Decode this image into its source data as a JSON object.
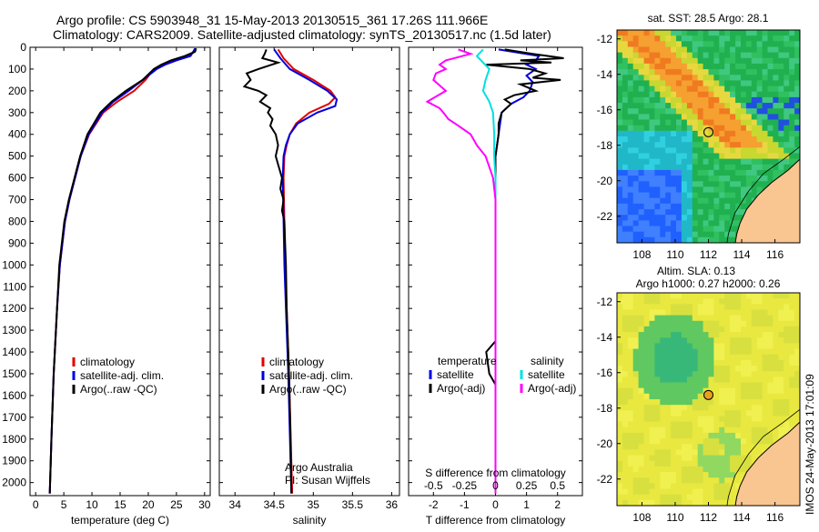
{
  "header": {
    "line1": "Argo profile: CS 5903948_31 15-May-2013 20130515_361 17.26S 111.966E",
    "line2": "Climatology: CARS2009. Satellite-adjusted climatology: synTS_20130517.nc (1.5d later)"
  },
  "side_text": "IMOS 24-May-2013 17:01:09",
  "colors": {
    "climatology": "#e00000",
    "satellite": "#0000e0",
    "argo": "#000000",
    "salinity_sat": "#00e0e0",
    "salinity_argo": "#ff00ff"
  },
  "chart_data": [
    {
      "id": "temperature",
      "type": "line",
      "xlabel": "temperature (deg C)",
      "xlim": [
        -1,
        31
      ],
      "xticks": [
        0,
        5,
        10,
        15,
        20,
        25,
        30
      ],
      "ylim": [
        2060,
        0
      ],
      "yticks": [
        0,
        100,
        200,
        300,
        400,
        500,
        600,
        700,
        800,
        900,
        1000,
        1100,
        1200,
        1300,
        1400,
        1500,
        1600,
        1700,
        1800,
        1900,
        2000
      ],
      "legend": {
        "placement": "lower-center",
        "entries": [
          "climatology",
          "satellite-adj. clim.",
          "Argo(..raw -QC)"
        ]
      },
      "series": [
        {
          "name": "climatology",
          "color": "#e00000",
          "depth": [
            5,
            20,
            40,
            60,
            80,
            100,
            150,
            200,
            250,
            300,
            400,
            500,
            600,
            700,
            800,
            1000,
            1200,
            1500,
            1800,
            2050
          ],
          "values": [
            28.4,
            28.3,
            27.0,
            24.5,
            22.5,
            21.0,
            19.5,
            17.5,
            14.5,
            12.0,
            9.5,
            8.0,
            7.0,
            6.0,
            5.2,
            4.3,
            3.8,
            3.2,
            2.8,
            2.5
          ]
        },
        {
          "name": "satellite-adj. clim.",
          "color": "#0000e0",
          "depth": [
            5,
            20,
            40,
            60,
            80,
            100,
            150,
            200,
            250,
            300,
            400,
            500,
            600,
            700,
            800,
            1000,
            1200,
            1500,
            1800,
            2050
          ],
          "values": [
            28.3,
            28.0,
            27.5,
            25.0,
            23.0,
            21.5,
            19.0,
            16.5,
            13.8,
            11.8,
            9.4,
            8.0,
            7.0,
            6.0,
            5.2,
            4.3,
            3.8,
            3.2,
            2.8,
            2.5
          ]
        },
        {
          "name": "Argo(..raw -QC)",
          "color": "#000000",
          "depth": [
            5,
            20,
            40,
            60,
            80,
            100,
            150,
            200,
            250,
            300,
            400,
            500,
            600,
            700,
            800,
            1000,
            1200,
            1500,
            1800,
            2050
          ],
          "values": [
            28.5,
            28.3,
            26.5,
            24.0,
            22.3,
            21.0,
            19.0,
            16.0,
            13.5,
            11.5,
            9.2,
            7.9,
            6.9,
            5.9,
            5.1,
            4.2,
            3.8,
            3.2,
            2.8,
            2.5
          ]
        }
      ]
    },
    {
      "id": "salinity",
      "type": "line",
      "xlabel": "salinity",
      "xlim": [
        33.8,
        36.1
      ],
      "xticks": [
        34,
        34.5,
        35,
        35.5,
        36
      ],
      "ylim": [
        2060,
        0
      ],
      "legend": {
        "placement": "lower-center",
        "entries": [
          "climatology",
          "satellite-adj. clim.",
          "Argo(..raw -QC)"
        ]
      },
      "annotation": [
        "Argo Australia",
        "PI: Susan Wijffels"
      ],
      "series": [
        {
          "name": "climatology",
          "color": "#e00000",
          "depth": [
            10,
            50,
            100,
            150,
            200,
            230,
            260,
            300,
            350,
            400,
            450,
            500,
            600,
            800,
            1000,
            1500,
            2050
          ],
          "values": [
            34.55,
            34.62,
            34.75,
            35.0,
            35.22,
            35.28,
            35.2,
            34.95,
            34.78,
            34.7,
            34.66,
            34.63,
            34.62,
            34.63,
            34.64,
            34.69,
            34.73
          ]
        },
        {
          "name": "satellite-adj. clim.",
          "color": "#0000e0",
          "depth": [
            10,
            50,
            100,
            150,
            200,
            240,
            270,
            300,
            350,
            400,
            450,
            500,
            600,
            800,
            1000,
            1500,
            2050
          ],
          "values": [
            34.5,
            34.58,
            34.7,
            34.95,
            35.18,
            35.3,
            35.28,
            35.05,
            34.8,
            34.7,
            34.65,
            34.62,
            34.61,
            34.62,
            34.63,
            34.68,
            34.72
          ]
        },
        {
          "name": "Argo(..raw -QC)",
          "color": "#000000",
          "depth": [
            10,
            30,
            50,
            70,
            100,
            120,
            150,
            180,
            200,
            220,
            250,
            280,
            300,
            330,
            360,
            400,
            450,
            500,
            550,
            600,
            650,
            700,
            750,
            800,
            900,
            1000,
            1200,
            1500,
            1800,
            2050
          ],
          "values": [
            34.4,
            34.38,
            34.35,
            34.55,
            34.3,
            34.15,
            34.2,
            34.12,
            34.3,
            34.4,
            34.32,
            34.45,
            34.42,
            34.48,
            34.45,
            34.52,
            34.55,
            34.52,
            34.56,
            34.6,
            34.58,
            34.62,
            34.6,
            34.63,
            34.64,
            34.65,
            34.66,
            34.69,
            34.71,
            34.72
          ]
        }
      ]
    },
    {
      "id": "difference",
      "type": "line",
      "xlabel": "T difference from climatology",
      "xlabel_top": "S difference from climatology",
      "xlim": [
        -2.8,
        2.8
      ],
      "xticks": [
        -2,
        -1,
        0,
        1,
        2
      ],
      "xticks_top": [
        "-0.5",
        "-0.25",
        "0",
        "0.25",
        "0.5"
      ],
      "ylim": [
        2060,
        0
      ],
      "legend_temperature": {
        "title": "temperature",
        "entries": [
          "satellite",
          "Argo(-adj)"
        ]
      },
      "legend_salinity": {
        "title": "salinity",
        "entries": [
          "satellite",
          "Argo(-adj)"
        ]
      },
      "series": [
        {
          "name": "T satellite",
          "color": "#0000e0",
          "depth": [
            10,
            40,
            60,
            80,
            100,
            130,
            160,
            200,
            230,
            260,
            300,
            400,
            500,
            600,
            800,
            1000,
            1500,
            2050
          ],
          "values": [
            0.1,
            1.4,
            1.3,
            1.0,
            1.3,
            1.0,
            1.2,
            1.1,
            0.9,
            0.5,
            0.2,
            0.1,
            0.0,
            0.0,
            0.0,
            0.0,
            0.0,
            0.0
          ]
        },
        {
          "name": "T Argo(-adj)",
          "color": "#000000",
          "depth": [
            10,
            30,
            50,
            60,
            70,
            80,
            100,
            120,
            140,
            150,
            170,
            200,
            220,
            240,
            260,
            300,
            350,
            400,
            500,
            600,
            800,
            1000,
            1200,
            1350,
            1400,
            1500,
            1550,
            2050
          ],
          "values": [
            0.3,
            1.2,
            2.2,
            0.8,
            1.8,
            -0.3,
            1.1,
            1.6,
            1.2,
            2.1,
            0.8,
            1.3,
            0.6,
            0.3,
            0.5,
            0.2,
            0.1,
            0.1,
            0.0,
            0.0,
            0.0,
            0.0,
            0.0,
            0.0,
            -0.3,
            -0.2,
            0.0,
            0.0
          ]
        },
        {
          "name": "S satellite",
          "color": "#00e0e0",
          "depth": [
            10,
            40,
            70,
            100,
            150,
            200,
            250,
            300,
            400,
            500,
            600,
            800,
            1000,
            1500,
            2050
          ],
          "values": [
            -0.1,
            -0.15,
            -0.1,
            -0.05,
            -0.08,
            -0.1,
            -0.05,
            -0.02,
            -0.01,
            -0.01,
            0.0,
            0.0,
            0.0,
            0.0,
            0.0
          ]
        },
        {
          "name": "S Argo(-adj)",
          "color": "#ff00ff",
          "depth": [
            10,
            30,
            60,
            80,
            100,
            120,
            150,
            200,
            250,
            280,
            300,
            330,
            360,
            400,
            450,
            500,
            550,
            600,
            700,
            800,
            1000,
            1500,
            2050
          ],
          "values": [
            -0.3,
            -0.2,
            -0.4,
            -0.45,
            -0.4,
            -0.48,
            -0.5,
            -0.4,
            -0.55,
            -0.45,
            -0.42,
            -0.38,
            -0.3,
            -0.2,
            -0.15,
            -0.08,
            -0.05,
            -0.02,
            0.0,
            0.0,
            0.0,
            0.0,
            0.0
          ]
        }
      ]
    },
    {
      "id": "sst_map",
      "type": "heatmap",
      "title": "sat. SST: 28.5 Argo: 28.1",
      "xlim": [
        106.5,
        117.5
      ],
      "ylim": [
        -23.5,
        -11.5
      ],
      "xticks": [
        108,
        110,
        112,
        114,
        116
      ],
      "yticks": [
        -12,
        -14,
        -16,
        -18,
        -20,
        -22
      ],
      "marker": {
        "lon": 112.0,
        "lat": -17.26
      }
    },
    {
      "id": "sla_map",
      "type": "heatmap",
      "title": "Altim. SLA: 0.13",
      "subtitle": "Argo h1000: 0.27 h2000: 0.26",
      "xlim": [
        106.5,
        117.5
      ],
      "ylim": [
        -23.5,
        -11.5
      ],
      "xticks": [
        108,
        110,
        112,
        114,
        116
      ],
      "yticks": [
        -12,
        -14,
        -16,
        -18,
        -20,
        -22
      ],
      "marker": {
        "lon": 112.0,
        "lat": -17.26
      }
    }
  ]
}
